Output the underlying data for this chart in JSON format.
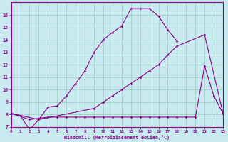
{
  "xlabel": "Windchill (Refroidissement éolien,°C)",
  "xlim": [
    0,
    23
  ],
  "ylim": [
    7,
    17
  ],
  "yticks": [
    7,
    8,
    9,
    10,
    11,
    12,
    13,
    14,
    15,
    16
  ],
  "xticks": [
    0,
    1,
    2,
    3,
    4,
    5,
    6,
    7,
    8,
    9,
    10,
    11,
    12,
    13,
    14,
    15,
    16,
    17,
    18,
    19,
    20,
    21,
    22,
    23
  ],
  "bg_color": "#c8eaf0",
  "line_color": "#880088",
  "grid_color": "#99ccbb",
  "peak_x": [
    0,
    1,
    2,
    3,
    4,
    5,
    6,
    7,
    8,
    9,
    10,
    11,
    12,
    13,
    14,
    15,
    16,
    17,
    18
  ],
  "peak_y": [
    8.1,
    7.9,
    6.8,
    7.6,
    8.6,
    8.7,
    9.5,
    10.5,
    11.5,
    13.0,
    14.0,
    14.6,
    15.1,
    16.5,
    16.5,
    16.5,
    15.9,
    14.8,
    13.9
  ],
  "grad_x": [
    0,
    3,
    9,
    10,
    11,
    12,
    13,
    14,
    15,
    16,
    17,
    18,
    21,
    23
  ],
  "grad_y": [
    8.1,
    7.6,
    8.5,
    9.0,
    9.5,
    10.0,
    10.5,
    11.0,
    11.5,
    12.0,
    12.8,
    13.5,
    14.4,
    8.1
  ],
  "flat_x": [
    0,
    2,
    3,
    4,
    5,
    6,
    7,
    8,
    9,
    10,
    11,
    12,
    13,
    14,
    15,
    16,
    17,
    18,
    19,
    20,
    21,
    22,
    23
  ],
  "flat_y": [
    8.1,
    7.6,
    7.7,
    7.8,
    7.8,
    7.8,
    7.8,
    7.8,
    7.8,
    7.8,
    7.8,
    7.8,
    7.8,
    7.8,
    7.8,
    7.8,
    7.8,
    7.8,
    7.8,
    7.8,
    11.9,
    9.5,
    8.1
  ]
}
